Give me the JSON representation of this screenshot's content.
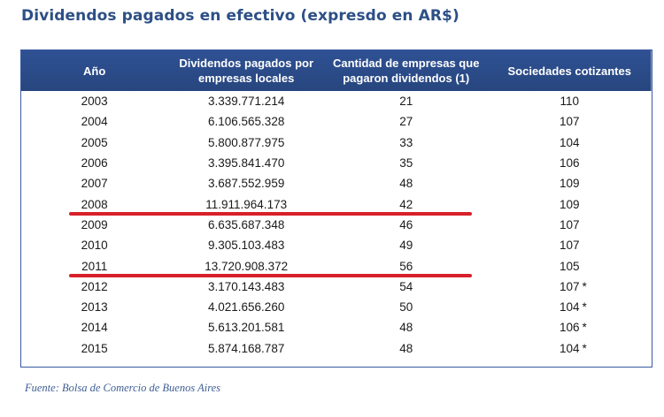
{
  "title": "Dividendos pagados en efectivo (expresdo en AR$)",
  "table": {
    "headers": [
      "Año",
      "Dividendos pagados por empresas locales",
      "Cantidad de empresas que pagaron dividendos (1)",
      "Sociedades cotizantes"
    ],
    "rows": [
      {
        "year": "2003",
        "dividends": "3.339.771.214",
        "companies": "21",
        "listed": "110",
        "note": ""
      },
      {
        "year": "2004",
        "dividends": "6.106.565.328",
        "companies": "27",
        "listed": "107",
        "note": ""
      },
      {
        "year": "2005",
        "dividends": "5.800.877.975",
        "companies": "33",
        "listed": "104",
        "note": ""
      },
      {
        "year": "2006",
        "dividends": "3.395.841.470",
        "companies": "35",
        "listed": "106",
        "note": ""
      },
      {
        "year": "2007",
        "dividends": "3.687.552.959",
        "companies": "48",
        "listed": "109",
        "note": ""
      },
      {
        "year": "2008",
        "dividends": "11.911.964.173",
        "companies": "42",
        "listed": "109",
        "note": ""
      },
      {
        "year": "2009",
        "dividends": "6.635.687.348",
        "companies": "46",
        "listed": "107",
        "note": ""
      },
      {
        "year": "2010",
        "dividends": "9.305.103.483",
        "companies": "49",
        "listed": "107",
        "note": ""
      },
      {
        "year": "2011",
        "dividends": "13.720.908.372",
        "companies": "56",
        "listed": "105",
        "note": ""
      },
      {
        "year": "2012",
        "dividends": "3.170.143.483",
        "companies": "54",
        "listed": "107",
        "note": "*"
      },
      {
        "year": "2013",
        "dividends": "4.021.656.260",
        "companies": "50",
        "listed": "104",
        "note": "*"
      },
      {
        "year": "2014",
        "dividends": "5.613.201.581",
        "companies": "48",
        "listed": "106",
        "note": "*"
      },
      {
        "year": "2015",
        "dividends": "5.874.168.787",
        "companies": "48",
        "listed": "104",
        "note": "*"
      }
    ],
    "highlighted_rows": [
      "2008",
      "2011"
    ],
    "colors": {
      "header_bg": "#2b4b89",
      "header_text": "#ffffff",
      "title": "#2d4f86",
      "highlight_line": "#d7202a",
      "source_text": "#3f5f95"
    }
  },
  "source": "Fuente: Bolsa de Comercio de Buenos Aires"
}
